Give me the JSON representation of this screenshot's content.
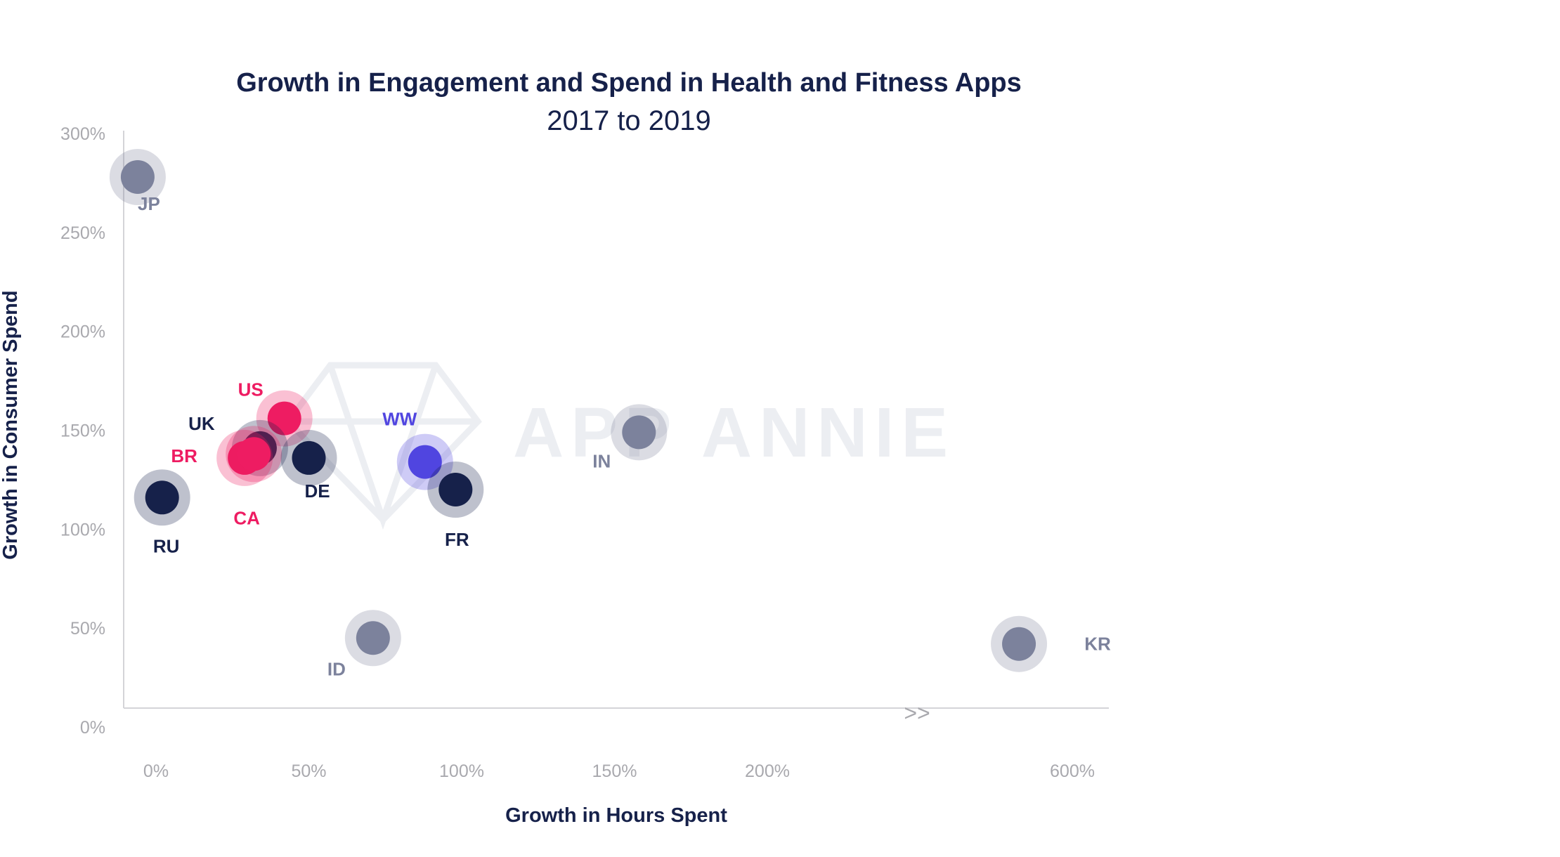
{
  "chart_data": {
    "type": "scatter",
    "title": "Growth in Engagement and Spend in Health and Fitness Apps",
    "subtitle": "2017 to 2019",
    "xlabel": "Growth in Hours Spent",
    "ylabel": "Growth in Consumer Spend",
    "x_ticks": [
      {
        "value": 0,
        "label": "0%"
      },
      {
        "value": 50,
        "label": "50%"
      },
      {
        "value": 100,
        "label": "100%"
      },
      {
        "value": 150,
        "label": "150%"
      },
      {
        "value": 200,
        "label": "200%"
      },
      {
        "value": 600,
        "label": "600%"
      }
    ],
    "y_ticks": [
      {
        "value": 0,
        "label": "0%"
      },
      {
        "value": 50,
        "label": "50%"
      },
      {
        "value": 100,
        "label": "100%"
      },
      {
        "value": 150,
        "label": "150%"
      },
      {
        "value": 200,
        "label": "200%"
      },
      {
        "value": 250,
        "label": "250%"
      },
      {
        "value": 300,
        "label": "300%"
      }
    ],
    "ylim": [
      0,
      300
    ],
    "axis_break_marker": ">>",
    "grid": false,
    "watermark": "APP ANNIE",
    "points": [
      {
        "label": "JP",
        "x": -6,
        "y": 278,
        "color": "#7c829c"
      },
      {
        "label": "US",
        "x": 42,
        "y": 156,
        "color": "#ee1c62"
      },
      {
        "label": "UK",
        "x": 34,
        "y": 141,
        "color": "#16214a"
      },
      {
        "label": "BR",
        "x": 29,
        "y": 136,
        "color": "#ee1c62"
      },
      {
        "label": "CA",
        "x": 32,
        "y": 138,
        "color": "#ee1c62"
      },
      {
        "label": "DE",
        "x": 50,
        "y": 136,
        "color": "#16214a"
      },
      {
        "label": "WW",
        "x": 88,
        "y": 134,
        "color": "#5045e0"
      },
      {
        "label": "FR",
        "x": 98,
        "y": 120,
        "color": "#16214a"
      },
      {
        "label": "RU",
        "x": 2,
        "y": 116,
        "color": "#16214a"
      },
      {
        "label": "IN",
        "x": 158,
        "y": 149,
        "color": "#7c829c"
      },
      {
        "label": "ID",
        "x": 71,
        "y": 45,
        "color": "#7c829c"
      },
      {
        "label": "KR",
        "x": 530,
        "y": 42,
        "color": "#7c829c"
      }
    ]
  }
}
